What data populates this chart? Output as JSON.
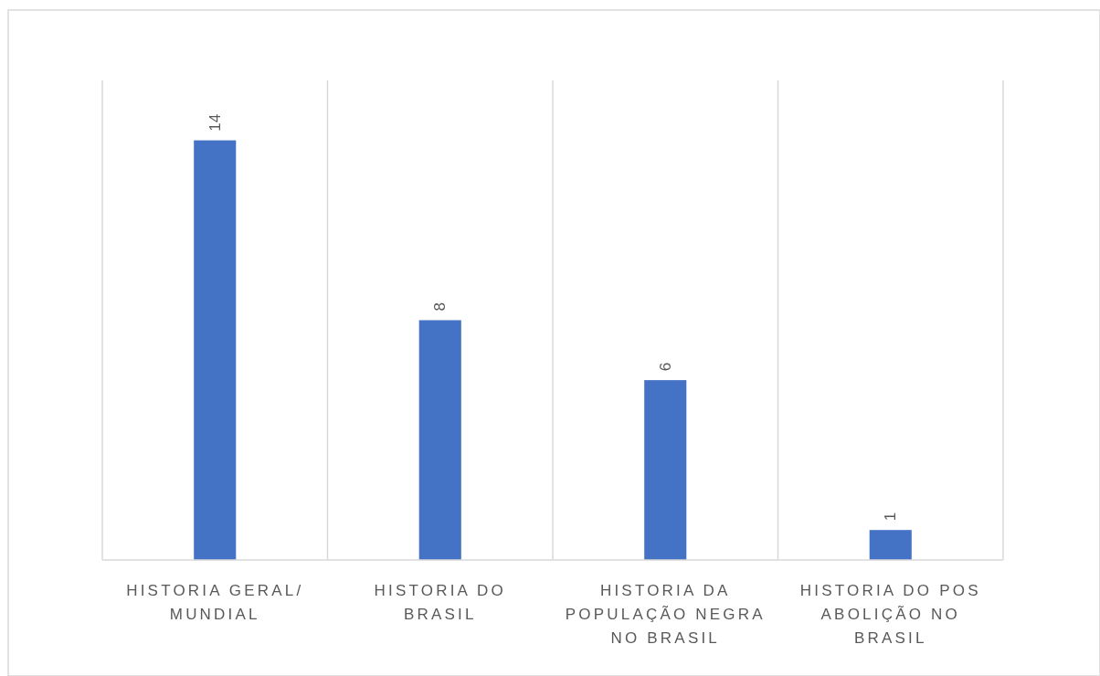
{
  "chart_data": {
    "type": "bar",
    "categories": [
      "HISTORIA GERAL/ MUNDIAL",
      "HISTORIA DO BRASIL",
      "HISTORIA DA POPULAÇÃO NEGRA NO BRASIL",
      "HISTORIA DO POS ABOLIÇÃO NO BRASIL"
    ],
    "values": [
      14,
      8,
      6,
      1
    ],
    "color": "#4472c4",
    "ylim": [
      0,
      16
    ],
    "data_labels": true,
    "grid": "x",
    "tick_labels": "x"
  }
}
